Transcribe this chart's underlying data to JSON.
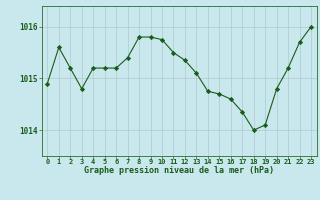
{
  "x": [
    0,
    1,
    2,
    3,
    4,
    5,
    6,
    7,
    8,
    9,
    10,
    11,
    12,
    13,
    14,
    15,
    16,
    17,
    18,
    19,
    20,
    21,
    22,
    23
  ],
  "y": [
    1014.9,
    1015.6,
    1015.2,
    1014.8,
    1015.2,
    1015.2,
    1015.2,
    1015.4,
    1015.8,
    1015.8,
    1015.75,
    1015.5,
    1015.35,
    1015.1,
    1014.75,
    1014.7,
    1014.6,
    1014.35,
    1014.0,
    1014.1,
    1014.8,
    1015.2,
    1015.7,
    1016.0
  ],
  "line_color": "#1a5c1a",
  "marker": "D",
  "marker_size": 2.2,
  "bg_color": "#c8e8ee",
  "grid_color": "#b0c8cc",
  "xlabel": "Graphe pression niveau de la mer (hPa)",
  "xlabel_color": "#1a5c1a",
  "tick_color": "#1a5c1a",
  "ylim": [
    1013.5,
    1016.4
  ],
  "yticks": [
    1014,
    1015,
    1016
  ],
  "xlim": [
    -0.5,
    23.5
  ],
  "xticks": [
    0,
    1,
    2,
    3,
    4,
    5,
    6,
    7,
    8,
    9,
    10,
    11,
    12,
    13,
    14,
    15,
    16,
    17,
    18,
    19,
    20,
    21,
    22,
    23
  ]
}
